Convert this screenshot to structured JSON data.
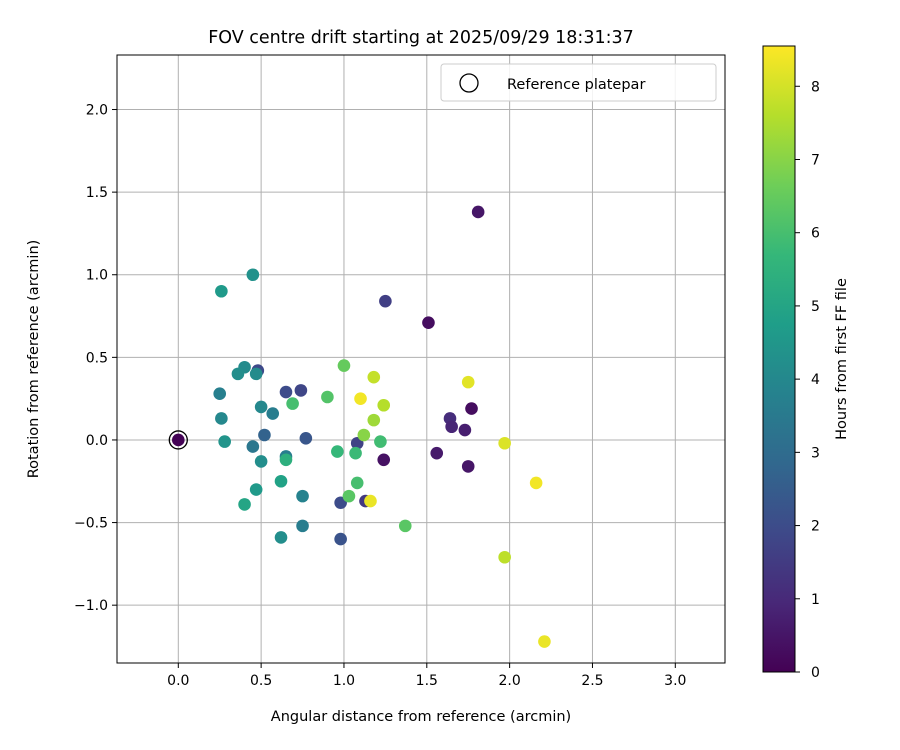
{
  "chart_data": {
    "type": "scatter",
    "title": "FOV centre drift starting at 2025/09/29 18:31:37",
    "xlabel": "Angular distance from reference (arcmin)",
    "ylabel": "Rotation from reference (arcmin)",
    "xlim": [
      -0.37,
      3.3
    ],
    "ylim": [
      -1.35,
      2.33
    ],
    "xticks": [
      0.0,
      0.5,
      1.0,
      1.5,
      2.0,
      2.5,
      3.0
    ],
    "xtick_labels": [
      "0.0",
      "0.5",
      "1.0",
      "1.5",
      "2.0",
      "2.5",
      "3.0"
    ],
    "yticks": [
      -1.0,
      -0.5,
      0.0,
      0.5,
      1.0,
      1.5,
      2.0
    ],
    "ytick_labels": [
      "−1.0",
      "−0.5",
      "0.0",
      "0.5",
      "1.0",
      "1.5",
      "2.0"
    ],
    "grid": true,
    "legend": {
      "label": "Reference platepar",
      "position": "top-right"
    },
    "reference_point": {
      "x": 0.0,
      "y": 0.0
    },
    "colorbar": {
      "label": "Hours from first FF file",
      "range": [
        0,
        8.55
      ],
      "ticks": [
        0,
        1,
        2,
        3,
        4,
        5,
        6,
        7,
        8
      ],
      "tick_labels": [
        "0",
        "1",
        "2",
        "3",
        "4",
        "5",
        "6",
        "7",
        "8"
      ],
      "colormap": [
        "#440154",
        "#482878",
        "#3e4989",
        "#31688e",
        "#26828e",
        "#1f9e89",
        "#35b779",
        "#6ece58",
        "#b5de2b",
        "#fde725"
      ]
    },
    "points": [
      {
        "x": 0.0,
        "y": 0.0,
        "hours": 0.05
      },
      {
        "x": 1.81,
        "y": 1.38,
        "hours": 0.5
      },
      {
        "x": 1.51,
        "y": 0.71,
        "hours": 0.3
      },
      {
        "x": 1.25,
        "y": 0.84,
        "hours": 1.6
      },
      {
        "x": 1.77,
        "y": 0.19,
        "hours": 0.3
      },
      {
        "x": 1.64,
        "y": 0.13,
        "hours": 1.1
      },
      {
        "x": 1.65,
        "y": 0.08,
        "hours": 0.9
      },
      {
        "x": 1.73,
        "y": 0.06,
        "hours": 0.7
      },
      {
        "x": 1.56,
        "y": -0.08,
        "hours": 0.6
      },
      {
        "x": 1.75,
        "y": -0.16,
        "hours": 0.5
      },
      {
        "x": 1.24,
        "y": -0.12,
        "hours": 0.4
      },
      {
        "x": 1.08,
        "y": -0.02,
        "hours": 1.7
      },
      {
        "x": 1.13,
        "y": -0.37,
        "hours": 1.4
      },
      {
        "x": 0.98,
        "y": -0.38,
        "hours": 2.0
      },
      {
        "x": 0.98,
        "y": -0.6,
        "hours": 2.2
      },
      {
        "x": 0.74,
        "y": 0.3,
        "hours": 1.8
      },
      {
        "x": 0.65,
        "y": 0.29,
        "hours": 2.0
      },
      {
        "x": 0.77,
        "y": 0.01,
        "hours": 2.3
      },
      {
        "x": 0.48,
        "y": 0.42,
        "hours": 1.9
      },
      {
        "x": 0.52,
        "y": 0.03,
        "hours": 2.7
      },
      {
        "x": 0.57,
        "y": 0.16,
        "hours": 3.6
      },
      {
        "x": 0.5,
        "y": 0.2,
        "hours": 4.0
      },
      {
        "x": 0.47,
        "y": 0.4,
        "hours": 4.1
      },
      {
        "x": 0.4,
        "y": 0.44,
        "hours": 4.1
      },
      {
        "x": 0.36,
        "y": 0.4,
        "hours": 4.2
      },
      {
        "x": 0.45,
        "y": 1.0,
        "hours": 4.3
      },
      {
        "x": 0.26,
        "y": 0.9,
        "hours": 4.6
      },
      {
        "x": 0.25,
        "y": 0.28,
        "hours": 3.7
      },
      {
        "x": 0.26,
        "y": 0.13,
        "hours": 4.0
      },
      {
        "x": 0.28,
        "y": -0.01,
        "hours": 4.4
      },
      {
        "x": 0.45,
        "y": -0.04,
        "hours": 3.4
      },
      {
        "x": 0.5,
        "y": -0.13,
        "hours": 4.2
      },
      {
        "x": 0.47,
        "y": -0.3,
        "hours": 4.6
      },
      {
        "x": 0.4,
        "y": -0.39,
        "hours": 5.0
      },
      {
        "x": 0.65,
        "y": -0.1,
        "hours": 3.6
      },
      {
        "x": 0.65,
        "y": -0.12,
        "hours": 5.4
      },
      {
        "x": 0.62,
        "y": -0.25,
        "hours": 4.9
      },
      {
        "x": 0.75,
        "y": -0.34,
        "hours": 3.8
      },
      {
        "x": 0.75,
        "y": -0.52,
        "hours": 3.6
      },
      {
        "x": 0.62,
        "y": -0.59,
        "hours": 4.2
      },
      {
        "x": 0.69,
        "y": 0.22,
        "hours": 6.0
      },
      {
        "x": 0.9,
        "y": 0.26,
        "hours": 6.2
      },
      {
        "x": 1.0,
        "y": 0.45,
        "hours": 6.5
      },
      {
        "x": 0.96,
        "y": -0.07,
        "hours": 5.7
      },
      {
        "x": 1.07,
        "y": -0.08,
        "hours": 5.8
      },
      {
        "x": 1.22,
        "y": -0.01,
        "hours": 5.9
      },
      {
        "x": 1.12,
        "y": 0.03,
        "hours": 7.0
      },
      {
        "x": 1.18,
        "y": 0.12,
        "hours": 7.3
      },
      {
        "x": 1.24,
        "y": 0.21,
        "hours": 7.6
      },
      {
        "x": 1.18,
        "y": 0.38,
        "hours": 7.8
      },
      {
        "x": 1.1,
        "y": 0.25,
        "hours": 8.4
      },
      {
        "x": 1.08,
        "y": -0.26,
        "hours": 6.0
      },
      {
        "x": 1.03,
        "y": -0.34,
        "hours": 6.3
      },
      {
        "x": 1.16,
        "y": -0.37,
        "hours": 8.3
      },
      {
        "x": 1.37,
        "y": -0.52,
        "hours": 6.3
      },
      {
        "x": 1.75,
        "y": 0.35,
        "hours": 8.2
      },
      {
        "x": 1.97,
        "y": -0.02,
        "hours": 8.1
      },
      {
        "x": 2.16,
        "y": -0.26,
        "hours": 8.4
      },
      {
        "x": 1.97,
        "y": -0.71,
        "hours": 7.7
      },
      {
        "x": 2.21,
        "y": -1.22,
        "hours": 8.3
      }
    ]
  }
}
